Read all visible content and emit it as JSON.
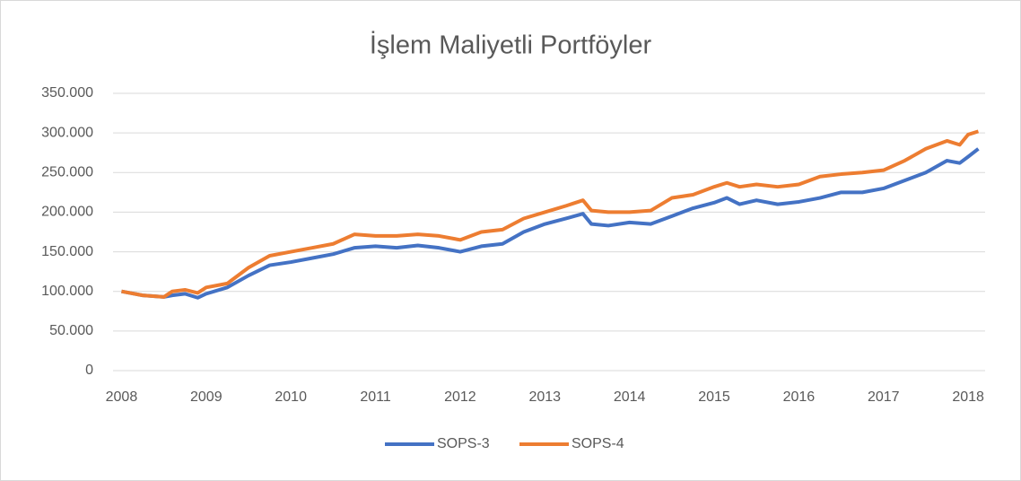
{
  "chart_data": {
    "type": "line",
    "title": "İşlem Maliyetli Portföyler",
    "x": [
      2008,
      2008.25,
      2008.5,
      2008.6,
      2008.75,
      2008.9,
      2009,
      2009.25,
      2009.5,
      2009.75,
      2010,
      2010.25,
      2010.5,
      2010.75,
      2011,
      2011.25,
      2011.5,
      2011.75,
      2012,
      2012.25,
      2012.5,
      2012.75,
      2013,
      2013.25,
      2013.45,
      2013.55,
      2013.75,
      2014,
      2014.25,
      2014.5,
      2014.75,
      2015,
      2015.15,
      2015.3,
      2015.5,
      2015.75,
      2016,
      2016.25,
      2016.5,
      2016.75,
      2017,
      2017.25,
      2017.5,
      2017.75,
      2017.9,
      2018,
      2018.12
    ],
    "series": [
      {
        "name": "SOPS-3",
        "color": "#4472c4",
        "values": [
          100000,
          95000,
          93000,
          95000,
          97000,
          92000,
          97000,
          105000,
          120000,
          133000,
          137000,
          142000,
          147000,
          155000,
          157000,
          155000,
          158000,
          155000,
          150000,
          157000,
          160000,
          175000,
          185000,
          192000,
          198000,
          185000,
          183000,
          187000,
          185000,
          195000,
          205000,
          212000,
          218000,
          210000,
          215000,
          210000,
          213000,
          218000,
          225000,
          225000,
          230000,
          240000,
          250000,
          265000,
          262000,
          270000,
          280000
        ]
      },
      {
        "name": "SOPS-4",
        "color": "#ed7d31",
        "values": [
          100000,
          95000,
          93000,
          100000,
          102000,
          98000,
          105000,
          110000,
          130000,
          145000,
          150000,
          155000,
          160000,
          172000,
          170000,
          170000,
          172000,
          170000,
          165000,
          175000,
          178000,
          192000,
          200000,
          208000,
          215000,
          202000,
          200000,
          200000,
          202000,
          218000,
          222000,
          232000,
          237000,
          232000,
          235000,
          232000,
          235000,
          245000,
          248000,
          250000,
          253000,
          265000,
          280000,
          290000,
          285000,
          298000,
          302000
        ]
      }
    ],
    "xlim": [
      2007.9,
      2018.2
    ],
    "xticks": [
      2008,
      2009,
      2010,
      2011,
      2012,
      2013,
      2014,
      2015,
      2016,
      2017,
      2018
    ],
    "ylim": [
      0,
      350000
    ],
    "yticks": [
      0,
      {
        "value": 50000,
        "label": "50.000"
      },
      {
        "value": 100000,
        "label": "100.000"
      },
      {
        "value": 150000,
        "label": "150.000"
      },
      {
        "value": 200000,
        "label": "200.000"
      },
      {
        "value": 250000,
        "label": "250.000"
      },
      {
        "value": 300000,
        "label": "300.000"
      },
      {
        "value": 350000,
        "label": "350.000"
      }
    ],
    "grid": true,
    "legend": "bottom"
  }
}
